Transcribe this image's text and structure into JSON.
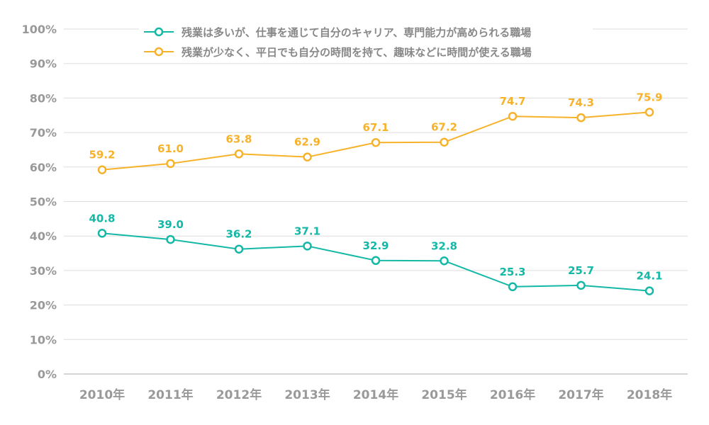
{
  "chart_data": {
    "type": "line",
    "categories": [
      "2010年",
      "2011年",
      "2012年",
      "2013年",
      "2014年",
      "2015年",
      "2016年",
      "2017年",
      "2018年"
    ],
    "series": [
      {
        "name": "残業は多いが、仕事を通じて自分のキャリア、専門能力が高められる職場",
        "color": "#14b8a6",
        "values": [
          40.8,
          39.0,
          36.2,
          37.1,
          32.9,
          32.8,
          25.3,
          25.7,
          24.1
        ]
      },
      {
        "name": "残業が少なく、平日でも自分の時間を持て、趣味などに時間が使える職場",
        "color": "#f7b22b",
        "values": [
          59.2,
          61.0,
          63.8,
          62.9,
          67.1,
          67.2,
          74.7,
          74.3,
          75.9
        ]
      }
    ],
    "yticks": [
      "0%",
      "10%",
      "20%",
      "30%",
      "40%",
      "50%",
      "60%",
      "70%",
      "80%",
      "90%",
      "100%"
    ],
    "ylim": [
      0,
      100
    ],
    "grid": true,
    "legend": "top",
    "xlabel": "",
    "ylabel": ""
  }
}
